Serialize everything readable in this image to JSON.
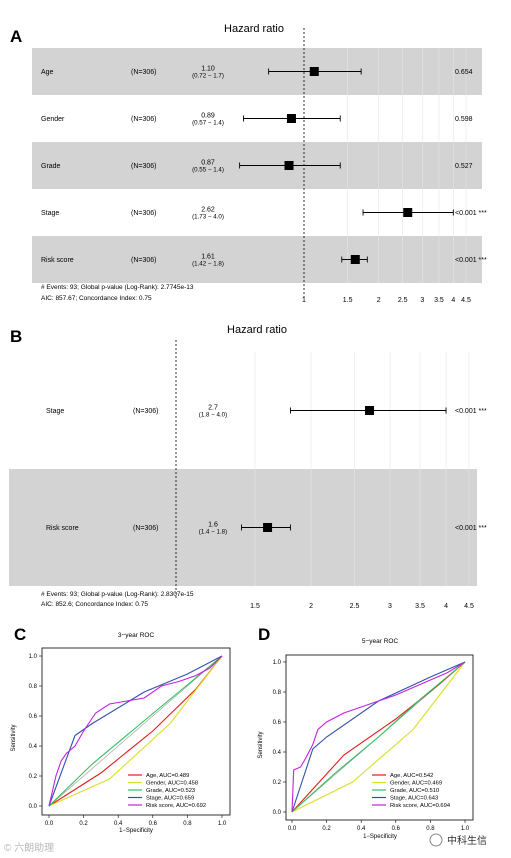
{
  "colors": {
    "band": "#d3d3d3",
    "age": "#e41a1c",
    "gender": "#dddd2a",
    "grade": "#2ec25c",
    "stage": "#2f52a8",
    "risk": "#c420e0"
  },
  "panels": {
    "A": {
      "letter": "A",
      "title": "Hazard ratio",
      "footer1": "# Events: 93; Global p-value (Log-Rank): 2.7745e-13",
      "footer2": "AIC: 857.67; Concordance Index: 0.75",
      "ticks": [
        {
          "v": 1,
          "label": "1"
        },
        {
          "v": 1.5,
          "label": "1.5"
        },
        {
          "v": 2,
          "label": "2"
        },
        {
          "v": 2.5,
          "label": "2.5"
        },
        {
          "v": 3,
          "label": "3"
        },
        {
          "v": 3.5,
          "label": "3.5"
        },
        {
          "v": 4,
          "label": "4"
        },
        {
          "v": 4.5,
          "label": "4.5"
        }
      ]
    },
    "B": {
      "letter": "B",
      "title": "Hazard ratio",
      "footer1": "# Events: 93; Global p-value (Log-Rank): 2.8307e-15",
      "footer2": "AIC: 852.6; Concordance Index: 0.75",
      "ticks": [
        {
          "v": 1.5,
          "label": "1.5"
        },
        {
          "v": 2,
          "label": "2"
        },
        {
          "v": 2.5,
          "label": "2.5"
        },
        {
          "v": 3,
          "label": "3"
        },
        {
          "v": 3.5,
          "label": "3.5"
        },
        {
          "v": 4,
          "label": "4"
        },
        {
          "v": 4.5,
          "label": "4.5"
        }
      ]
    },
    "C": {
      "letter": "C",
      "title": "3−year ROC"
    },
    "D": {
      "letter": "D",
      "title": "5−year ROC"
    }
  },
  "roc_axes": {
    "xlabel": "1−Specificity",
    "ylabel": "Sensitivity",
    "ticks": [
      "0.0",
      "0.2",
      "0.4",
      "0.6",
      "0.8",
      "1.0"
    ]
  },
  "watermark": {
    "left": "© 六朗助理",
    "right": "中科生信"
  },
  "chart_data": [
    {
      "type": "forest",
      "panel": "A",
      "title": "Hazard ratio",
      "xscale": "log",
      "reference": 1,
      "rows": [
        {
          "variable": "Age",
          "n": "(N=306)",
          "hr": 1.1,
          "hr_label": "1.10",
          "ci": [
            0.72,
            1.7
          ],
          "ci_label": "(0.72 − 1.7)",
          "p": "0.654",
          "shaded": true
        },
        {
          "variable": "Gender",
          "n": "(N=306)",
          "hr": 0.89,
          "hr_label": "0.89",
          "ci": [
            0.57,
            1.4
          ],
          "ci_label": "(0.57 − 1.4)",
          "p": "0.598",
          "shaded": false
        },
        {
          "variable": "Grade",
          "n": "(N=306)",
          "hr": 0.87,
          "hr_label": "0.87",
          "ci": [
            0.55,
            1.4
          ],
          "ci_label": "(0.55 − 1.4)",
          "p": "0.527",
          "shaded": true
        },
        {
          "variable": "Stage",
          "n": "(N=306)",
          "hr": 2.62,
          "hr_label": "2.62",
          "ci": [
            1.73,
            4.0
          ],
          "ci_label": "(1.73 − 4.0)",
          "p": "<0.001 ***",
          "shaded": false
        },
        {
          "variable": "Risk score",
          "n": "(N=306)",
          "hr": 1.61,
          "hr_label": "1.61",
          "ci": [
            1.42,
            1.8
          ],
          "ci_label": "(1.42 − 1.8)",
          "p": "<0.001 ***",
          "shaded": true
        }
      ]
    },
    {
      "type": "forest",
      "panel": "B",
      "title": "Hazard ratio",
      "xscale": "log",
      "reference": 1,
      "rows": [
        {
          "variable": "Stage",
          "n": "(N=306)",
          "hr": 2.7,
          "hr_label": "2.7",
          "ci": [
            1.8,
            4.0
          ],
          "ci_label": "(1.8 − 4.0)",
          "p": "<0.001 ***",
          "shaded": false
        },
        {
          "variable": "Risk score",
          "n": "(N=306)",
          "hr": 1.6,
          "hr_label": "1.6",
          "ci": [
            1.4,
            1.8
          ],
          "ci_label": "(1.4 − 1.8)",
          "p": "<0.001 ***",
          "shaded": true
        }
      ]
    },
    {
      "type": "line",
      "panel": "C",
      "title": "3−year ROC",
      "xlabel": "1−Specificity",
      "ylabel": "Sensitivity",
      "xlim": [
        0,
        1
      ],
      "ylim": [
        0,
        1
      ],
      "series": [
        {
          "name": "Age, AUC=0.489",
          "key": "age",
          "points": [
            [
              0,
              0
            ],
            [
              0.3,
              0.22
            ],
            [
              0.6,
              0.5
            ],
            [
              0.85,
              0.78
            ],
            [
              1,
              1
            ]
          ]
        },
        {
          "name": "Gender, AUC=0.458",
          "key": "gender",
          "points": [
            [
              0,
              0
            ],
            [
              0.35,
              0.18
            ],
            [
              0.7,
              0.55
            ],
            [
              0.9,
              0.85
            ],
            [
              1,
              1
            ]
          ]
        },
        {
          "name": "Grade, AUC=0.523",
          "key": "grade",
          "points": [
            [
              0,
              0
            ],
            [
              0.25,
              0.28
            ],
            [
              0.5,
              0.52
            ],
            [
              0.75,
              0.76
            ],
            [
              1,
              1
            ]
          ]
        },
        {
          "name": "Stage, AUC=0.659",
          "key": "stage",
          "points": [
            [
              0,
              0
            ],
            [
              0.15,
              0.47
            ],
            [
              0.25,
              0.55
            ],
            [
              0.55,
              0.76
            ],
            [
              0.8,
              0.88
            ],
            [
              1,
              1
            ]
          ]
        },
        {
          "name": "Risk score, AUC=0.692",
          "key": "risk",
          "points": [
            [
              0,
              0
            ],
            [
              0.02,
              0.1
            ],
            [
              0.04,
              0.2
            ],
            [
              0.07,
              0.3
            ],
            [
              0.1,
              0.35
            ],
            [
              0.15,
              0.4
            ],
            [
              0.2,
              0.5
            ],
            [
              0.27,
              0.62
            ],
            [
              0.35,
              0.68
            ],
            [
              0.45,
              0.7
            ],
            [
              0.55,
              0.72
            ],
            [
              0.65,
              0.8
            ],
            [
              0.75,
              0.83
            ],
            [
              0.85,
              0.87
            ],
            [
              0.93,
              0.92
            ],
            [
              1,
              1
            ]
          ]
        }
      ]
    },
    {
      "type": "line",
      "panel": "D",
      "title": "5−year ROC",
      "xlabel": "1−Specificity",
      "ylabel": "Sensitivity",
      "xlim": [
        0,
        1
      ],
      "ylim": [
        0,
        1
      ],
      "series": [
        {
          "name": "Age, AUC=0.542",
          "key": "age",
          "points": [
            [
              0,
              0
            ],
            [
              0.3,
              0.38
            ],
            [
              0.6,
              0.62
            ],
            [
              0.85,
              0.85
            ],
            [
              1,
              1
            ]
          ]
        },
        {
          "name": "Gender, AUC=0.469",
          "key": "gender",
          "points": [
            [
              0,
              0
            ],
            [
              0.35,
              0.2
            ],
            [
              0.7,
              0.55
            ],
            [
              0.9,
              0.85
            ],
            [
              1,
              1
            ]
          ]
        },
        {
          "name": "Grade, AUC=0.510",
          "key": "grade",
          "points": [
            [
              0,
              0
            ],
            [
              0.25,
              0.26
            ],
            [
              0.5,
              0.5
            ],
            [
              0.75,
              0.76
            ],
            [
              1,
              1
            ]
          ]
        },
        {
          "name": "Stage, AUC=0.643",
          "key": "stage",
          "points": [
            [
              0,
              0
            ],
            [
              0.12,
              0.42
            ],
            [
              0.2,
              0.5
            ],
            [
              0.5,
              0.74
            ],
            [
              0.8,
              0.9
            ],
            [
              1,
              1
            ]
          ]
        },
        {
          "name": "Risk score, AUC=0.694",
          "key": "risk",
          "points": [
            [
              0,
              0
            ],
            [
              0.01,
              0.28
            ],
            [
              0.05,
              0.3
            ],
            [
              0.08,
              0.36
            ],
            [
              0.12,
              0.45
            ],
            [
              0.15,
              0.55
            ],
            [
              0.2,
              0.6
            ],
            [
              0.3,
              0.66
            ],
            [
              0.4,
              0.7
            ],
            [
              0.5,
              0.74
            ],
            [
              0.6,
              0.78
            ],
            [
              0.7,
              0.83
            ],
            [
              0.8,
              0.88
            ],
            [
              0.9,
              0.93
            ],
            [
              1,
              1
            ]
          ]
        }
      ]
    }
  ]
}
